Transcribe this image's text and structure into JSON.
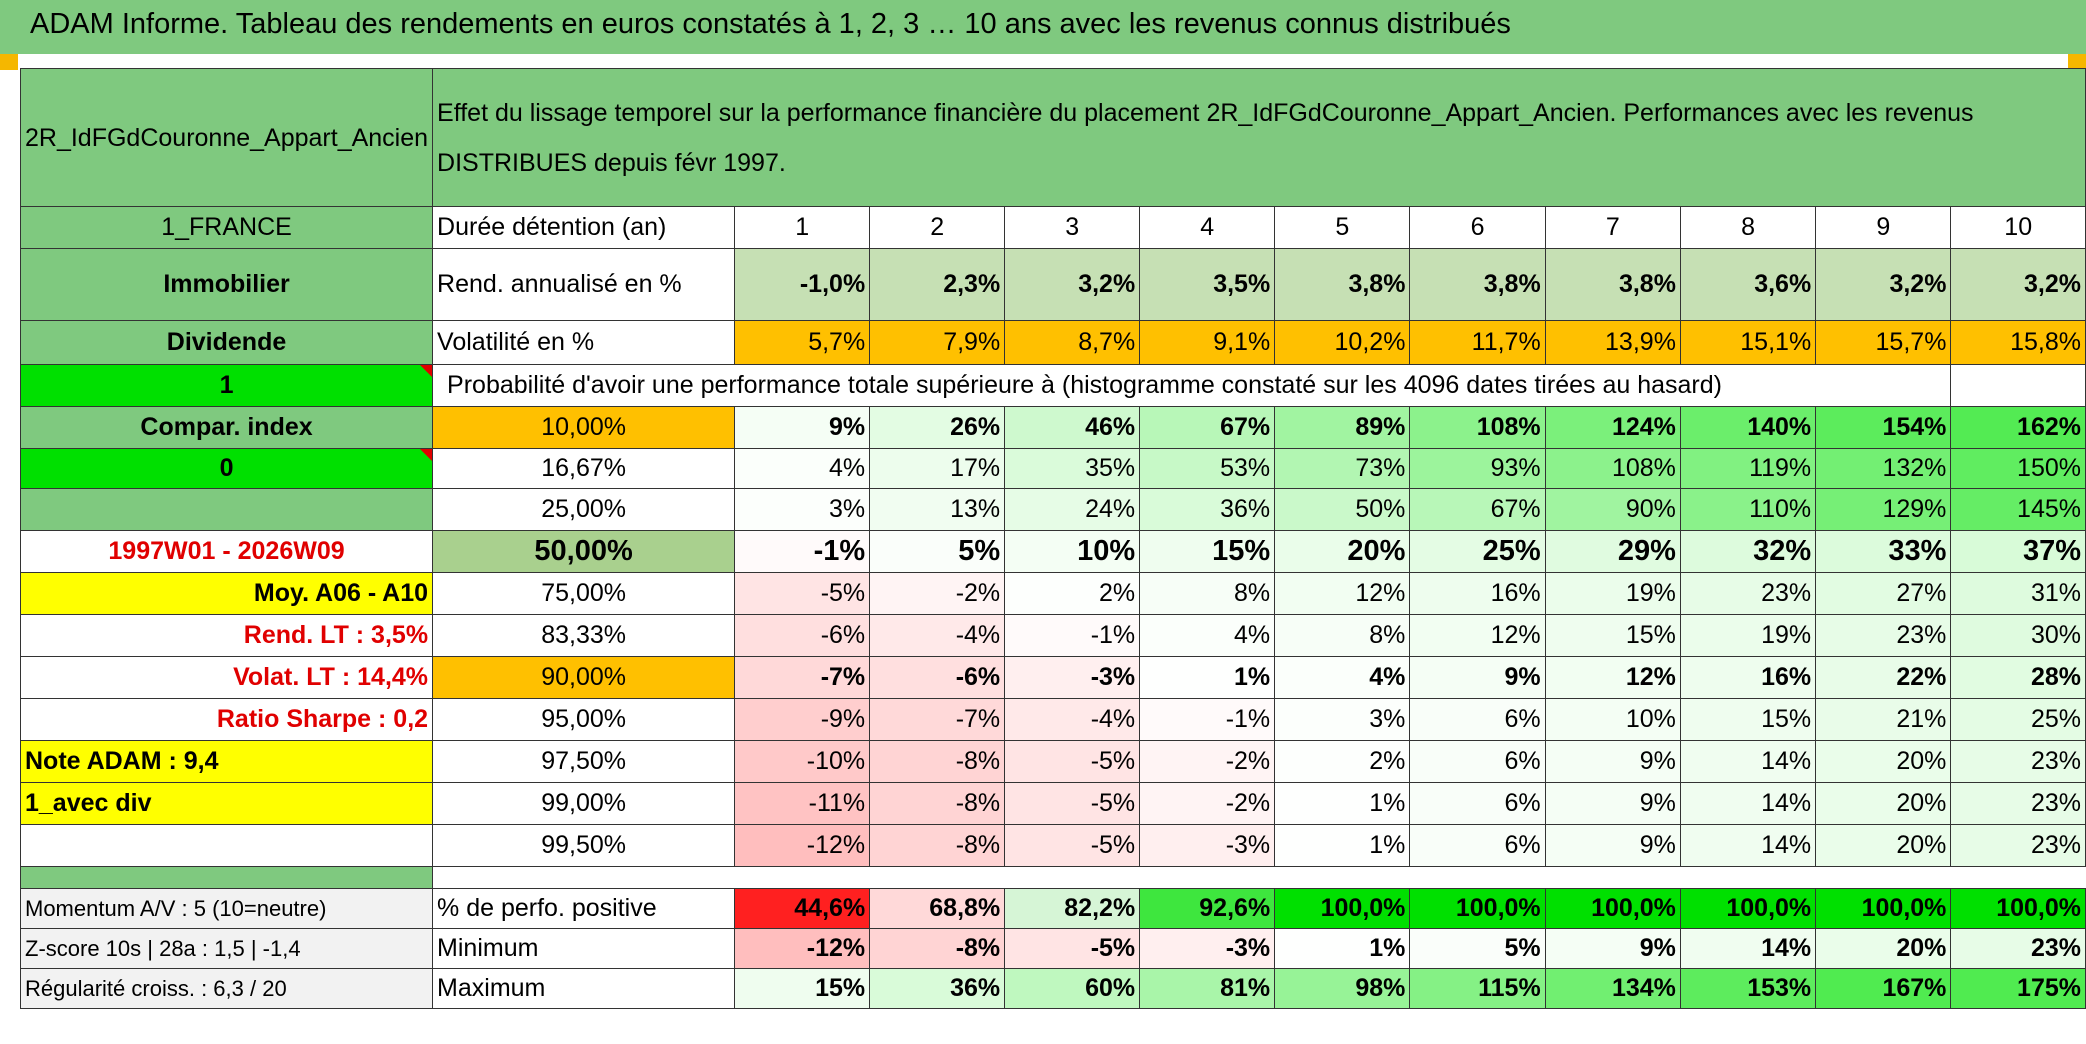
{
  "title": "ADAM Informe. Tableau des rendements en euros constatés à 1, 2, 3 … 10 ans avec les revenus connus distribués",
  "fund_name": "2R_IdFGdCouronne_Appart_Ancien",
  "description": "Effet du lissage temporel sur la performance financière du placement 2R_IdFGdCouronne_Appart_Ancien. Performances avec les revenus DISTRIBUES depuis févr 1997.",
  "colors": {
    "header_green": "#7fc97f",
    "bright_green": "#00e000",
    "orange": "#ffc000",
    "yellow": "#ffff00",
    "red_text": "#e00000"
  },
  "side": {
    "country": "1_FRANCE",
    "asset_class": "Immobilier",
    "income": "Dividende",
    "flag_1": "1",
    "compar_index": "Compar. index",
    "flag_0": "0",
    "period": "1997W01 - 2026W09",
    "moy": "Moy. A06 - A10",
    "rend_lt": "Rend. LT :   3,5%",
    "volat_lt": "Volat. LT :   14,4%",
    "sharpe": "Ratio Sharpe :    0,2",
    "note": "Note ADAM : 9,4",
    "avec_div": "1_avec div",
    "momentum": "Momentum A/V : 5 (10=neutre)",
    "zscore": "Z-score 10s | 28a : 1,5 | -1,4",
    "regularite": "Régularité croiss. : 6,3 / 20"
  },
  "years_label": "Durée détention (an)",
  "years": [
    "1",
    "2",
    "3",
    "4",
    "5",
    "6",
    "7",
    "8",
    "9",
    "10"
  ],
  "rend_label": "Rend. annualisé en %",
  "rend": [
    "-1,0%",
    "2,3%",
    "3,2%",
    "3,5%",
    "3,8%",
    "3,8%",
    "3,8%",
    "3,6%",
    "3,2%",
    "3,2%"
  ],
  "vol_label": "Volatilité en %",
  "vol": [
    "5,7%",
    "7,9%",
    "8,7%",
    "9,1%",
    "10,2%",
    "11,7%",
    "13,9%",
    "15,1%",
    "15,7%",
    "15,8%"
  ],
  "prob_title": "Probabilité d'avoir une performance totale supérieure à (histogramme constaté sur les 4096 dates tirées au hasard)",
  "percentiles": [
    {
      "p": "10,00%",
      "v": [
        "9%",
        "26%",
        "46%",
        "67%",
        "89%",
        "108%",
        "124%",
        "140%",
        "154%",
        "162%"
      ]
    },
    {
      "p": "16,67%",
      "v": [
        "4%",
        "17%",
        "35%",
        "53%",
        "73%",
        "93%",
        "108%",
        "119%",
        "132%",
        "150%"
      ]
    },
    {
      "p": "25,00%",
      "v": [
        "3%",
        "13%",
        "24%",
        "36%",
        "50%",
        "67%",
        "90%",
        "110%",
        "129%",
        "145%"
      ]
    },
    {
      "p": "50,00%",
      "v": [
        "-1%",
        "5%",
        "10%",
        "15%",
        "20%",
        "25%",
        "29%",
        "32%",
        "33%",
        "37%"
      ]
    },
    {
      "p": "75,00%",
      "v": [
        "-5%",
        "-2%",
        "2%",
        "8%",
        "12%",
        "16%",
        "19%",
        "23%",
        "27%",
        "31%"
      ]
    },
    {
      "p": "83,33%",
      "v": [
        "-6%",
        "-4%",
        "-1%",
        "4%",
        "8%",
        "12%",
        "15%",
        "19%",
        "23%",
        "30%"
      ]
    },
    {
      "p": "90,00%",
      "v": [
        "-7%",
        "-6%",
        "-3%",
        "1%",
        "4%",
        "9%",
        "12%",
        "16%",
        "22%",
        "28%"
      ]
    },
    {
      "p": "95,00%",
      "v": [
        "-9%",
        "-7%",
        "-4%",
        "-1%",
        "3%",
        "6%",
        "10%",
        "15%",
        "21%",
        "25%"
      ]
    },
    {
      "p": "97,50%",
      "v": [
        "-10%",
        "-8%",
        "-5%",
        "-2%",
        "2%",
        "6%",
        "9%",
        "14%",
        "20%",
        "23%"
      ]
    },
    {
      "p": "99,00%",
      "v": [
        "-11%",
        "-8%",
        "-5%",
        "-2%",
        "1%",
        "6%",
        "9%",
        "14%",
        "20%",
        "23%"
      ]
    },
    {
      "p": "99,50%",
      "v": [
        "-12%",
        "-8%",
        "-5%",
        "-3%",
        "1%",
        "6%",
        "9%",
        "14%",
        "20%",
        "23%"
      ]
    }
  ],
  "pos_label": "% de perfo. positive",
  "pos": [
    "44,6%",
    "68,8%",
    "82,2%",
    "92,6%",
    "100,0%",
    "100,0%",
    "100,0%",
    "100,0%",
    "100,0%",
    "100,0%"
  ],
  "min_label": "Minimum",
  "min": [
    "-12%",
    "-8%",
    "-5%",
    "-3%",
    "1%",
    "5%",
    "9%",
    "14%",
    "20%",
    "23%"
  ],
  "max_label": "Maximum",
  "max": [
    "15%",
    "36%",
    "60%",
    "81%",
    "98%",
    "115%",
    "134%",
    "153%",
    "167%",
    "175%"
  ]
}
